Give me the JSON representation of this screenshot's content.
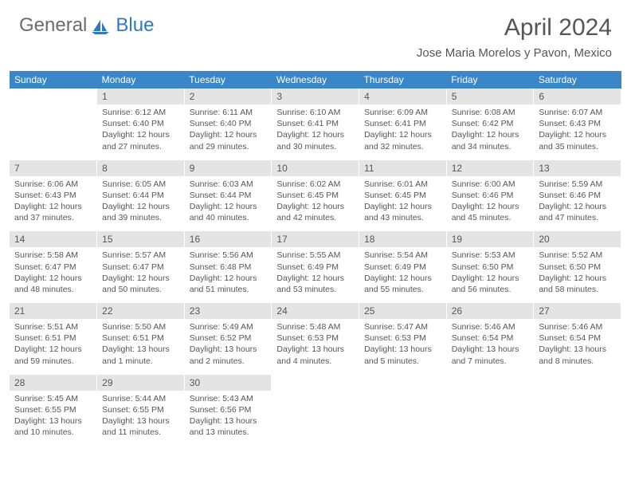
{
  "brand": {
    "general": "General",
    "blue": "Blue"
  },
  "title": "April 2024",
  "location": "Jose Maria Morelos y Pavon, Mexico",
  "colors": {
    "header_bg": "#3a87c8",
    "header_text": "#ffffff",
    "daynum_bg": "#e4e4e4",
    "text": "#565656",
    "brand_blue": "#2f79c0",
    "brand_gray": "#6b6b6b"
  },
  "dow": [
    "Sunday",
    "Monday",
    "Tuesday",
    "Wednesday",
    "Thursday",
    "Friday",
    "Saturday"
  ],
  "weeks": [
    {
      "nums": [
        "",
        "1",
        "2",
        "3",
        "4",
        "5",
        "6"
      ],
      "cells": [
        null,
        {
          "sunrise": "Sunrise: 6:12 AM",
          "sunset": "Sunset: 6:40 PM",
          "day1": "Daylight: 12 hours",
          "day2": "and 27 minutes."
        },
        {
          "sunrise": "Sunrise: 6:11 AM",
          "sunset": "Sunset: 6:40 PM",
          "day1": "Daylight: 12 hours",
          "day2": "and 29 minutes."
        },
        {
          "sunrise": "Sunrise: 6:10 AM",
          "sunset": "Sunset: 6:41 PM",
          "day1": "Daylight: 12 hours",
          "day2": "and 30 minutes."
        },
        {
          "sunrise": "Sunrise: 6:09 AM",
          "sunset": "Sunset: 6:41 PM",
          "day1": "Daylight: 12 hours",
          "day2": "and 32 minutes."
        },
        {
          "sunrise": "Sunrise: 6:08 AM",
          "sunset": "Sunset: 6:42 PM",
          "day1": "Daylight: 12 hours",
          "day2": "and 34 minutes."
        },
        {
          "sunrise": "Sunrise: 6:07 AM",
          "sunset": "Sunset: 6:43 PM",
          "day1": "Daylight: 12 hours",
          "day2": "and 35 minutes."
        }
      ]
    },
    {
      "nums": [
        "7",
        "8",
        "9",
        "10",
        "11",
        "12",
        "13"
      ],
      "cells": [
        {
          "sunrise": "Sunrise: 6:06 AM",
          "sunset": "Sunset: 6:43 PM",
          "day1": "Daylight: 12 hours",
          "day2": "and 37 minutes."
        },
        {
          "sunrise": "Sunrise: 6:05 AM",
          "sunset": "Sunset: 6:44 PM",
          "day1": "Daylight: 12 hours",
          "day2": "and 39 minutes."
        },
        {
          "sunrise": "Sunrise: 6:03 AM",
          "sunset": "Sunset: 6:44 PM",
          "day1": "Daylight: 12 hours",
          "day2": "and 40 minutes."
        },
        {
          "sunrise": "Sunrise: 6:02 AM",
          "sunset": "Sunset: 6:45 PM",
          "day1": "Daylight: 12 hours",
          "day2": "and 42 minutes."
        },
        {
          "sunrise": "Sunrise: 6:01 AM",
          "sunset": "Sunset: 6:45 PM",
          "day1": "Daylight: 12 hours",
          "day2": "and 43 minutes."
        },
        {
          "sunrise": "Sunrise: 6:00 AM",
          "sunset": "Sunset: 6:46 PM",
          "day1": "Daylight: 12 hours",
          "day2": "and 45 minutes."
        },
        {
          "sunrise": "Sunrise: 5:59 AM",
          "sunset": "Sunset: 6:46 PM",
          "day1": "Daylight: 12 hours",
          "day2": "and 47 minutes."
        }
      ]
    },
    {
      "nums": [
        "14",
        "15",
        "16",
        "17",
        "18",
        "19",
        "20"
      ],
      "cells": [
        {
          "sunrise": "Sunrise: 5:58 AM",
          "sunset": "Sunset: 6:47 PM",
          "day1": "Daylight: 12 hours",
          "day2": "and 48 minutes."
        },
        {
          "sunrise": "Sunrise: 5:57 AM",
          "sunset": "Sunset: 6:47 PM",
          "day1": "Daylight: 12 hours",
          "day2": "and 50 minutes."
        },
        {
          "sunrise": "Sunrise: 5:56 AM",
          "sunset": "Sunset: 6:48 PM",
          "day1": "Daylight: 12 hours",
          "day2": "and 51 minutes."
        },
        {
          "sunrise": "Sunrise: 5:55 AM",
          "sunset": "Sunset: 6:49 PM",
          "day1": "Daylight: 12 hours",
          "day2": "and 53 minutes."
        },
        {
          "sunrise": "Sunrise: 5:54 AM",
          "sunset": "Sunset: 6:49 PM",
          "day1": "Daylight: 12 hours",
          "day2": "and 55 minutes."
        },
        {
          "sunrise": "Sunrise: 5:53 AM",
          "sunset": "Sunset: 6:50 PM",
          "day1": "Daylight: 12 hours",
          "day2": "and 56 minutes."
        },
        {
          "sunrise": "Sunrise: 5:52 AM",
          "sunset": "Sunset: 6:50 PM",
          "day1": "Daylight: 12 hours",
          "day2": "and 58 minutes."
        }
      ]
    },
    {
      "nums": [
        "21",
        "22",
        "23",
        "24",
        "25",
        "26",
        "27"
      ],
      "cells": [
        {
          "sunrise": "Sunrise: 5:51 AM",
          "sunset": "Sunset: 6:51 PM",
          "day1": "Daylight: 12 hours",
          "day2": "and 59 minutes."
        },
        {
          "sunrise": "Sunrise: 5:50 AM",
          "sunset": "Sunset: 6:51 PM",
          "day1": "Daylight: 13 hours",
          "day2": "and 1 minute."
        },
        {
          "sunrise": "Sunrise: 5:49 AM",
          "sunset": "Sunset: 6:52 PM",
          "day1": "Daylight: 13 hours",
          "day2": "and 2 minutes."
        },
        {
          "sunrise": "Sunrise: 5:48 AM",
          "sunset": "Sunset: 6:53 PM",
          "day1": "Daylight: 13 hours",
          "day2": "and 4 minutes."
        },
        {
          "sunrise": "Sunrise: 5:47 AM",
          "sunset": "Sunset: 6:53 PM",
          "day1": "Daylight: 13 hours",
          "day2": "and 5 minutes."
        },
        {
          "sunrise": "Sunrise: 5:46 AM",
          "sunset": "Sunset: 6:54 PM",
          "day1": "Daylight: 13 hours",
          "day2": "and 7 minutes."
        },
        {
          "sunrise": "Sunrise: 5:46 AM",
          "sunset": "Sunset: 6:54 PM",
          "day1": "Daylight: 13 hours",
          "day2": "and 8 minutes."
        }
      ]
    },
    {
      "nums": [
        "28",
        "29",
        "30",
        "",
        "",
        "",
        ""
      ],
      "cells": [
        {
          "sunrise": "Sunrise: 5:45 AM",
          "sunset": "Sunset: 6:55 PM",
          "day1": "Daylight: 13 hours",
          "day2": "and 10 minutes."
        },
        {
          "sunrise": "Sunrise: 5:44 AM",
          "sunset": "Sunset: 6:55 PM",
          "day1": "Daylight: 13 hours",
          "day2": "and 11 minutes."
        },
        {
          "sunrise": "Sunrise: 5:43 AM",
          "sunset": "Sunset: 6:56 PM",
          "day1": "Daylight: 13 hours",
          "day2": "and 13 minutes."
        },
        null,
        null,
        null,
        null
      ]
    }
  ]
}
